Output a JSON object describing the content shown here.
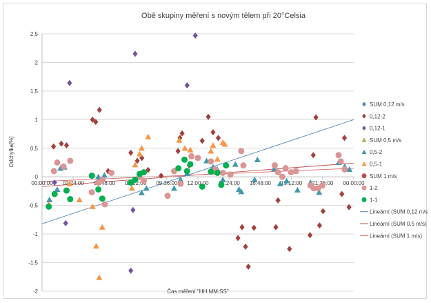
{
  "chart_data": {
    "type": "scatter",
    "title": "Obě skupiny měření s novým tělem při 20°Celsia",
    "xlabel": "Čas měření \"HH:MM:SS\"",
    "ylabel": "Odchylka[%]",
    "x_unit": "time of day",
    "xlim": [
      "00:00:00",
      "24:00:00"
    ],
    "ylim": [
      -2,
      2.5
    ],
    "x_ticks": [
      "00:00:00",
      "02:24:00",
      "04:48:00",
      "07:12:00",
      "09:36:00",
      "12:00:00",
      "14:24:00",
      "16:48:00",
      "19:12:00",
      "21:36:00",
      "00:00:00"
    ],
    "y_ticks": [
      "2,5",
      "2",
      "1,5",
      "1",
      "0,5",
      "0",
      "-0,5",
      "-1",
      "-1,5",
      "-2"
    ],
    "y_tick_values": [
      2.5,
      2,
      1.5,
      1,
      0.5,
      0,
      -0.5,
      -1,
      -1.5,
      -2
    ],
    "grid": true,
    "legend_position": "right",
    "series": [
      {
        "name": "SUM 0,12 m/s",
        "marker": "diamond",
        "color": "#4f81bd",
        "points": []
      },
      {
        "name": "0,12-2",
        "marker": "diamond",
        "color": "#a0413d",
        "points": [
          [
            "00:53:00",
            0.53
          ],
          [
            "01:29:00",
            0.58
          ],
          [
            "01:53:00",
            0.55
          ],
          [
            "03:53:00",
            1.0
          ],
          [
            "04:08:00",
            0.96
          ],
          [
            "04:25:00",
            1.17
          ],
          [
            "05:05:00",
            0.1
          ],
          [
            "06:50:00",
            0.42
          ],
          [
            "07:20:00",
            0.28
          ],
          [
            "07:41:00",
            0.33
          ],
          [
            "08:10:00",
            0.12
          ],
          [
            "09:10:00",
            0.02
          ],
          [
            "10:28:00",
            0.45
          ],
          [
            "10:37:00",
            0.68
          ],
          [
            "10:47:00",
            0.76
          ],
          [
            "11:20:00",
            0.2
          ],
          [
            "12:20:00",
            0.63
          ],
          [
            "12:48:00",
            1.05
          ],
          [
            "13:10:00",
            0.78
          ],
          [
            "13:34:00",
            0.68
          ],
          [
            "15:05:00",
            -1.07
          ],
          [
            "15:24:00",
            -0.88
          ],
          [
            "15:40:00",
            -1.22
          ],
          [
            "15:53:00",
            -1.57
          ],
          [
            "16:19:00",
            -0.89
          ],
          [
            "18:00:00",
            -0.88
          ],
          [
            "18:10:00",
            -0.41
          ],
          [
            "18:44:00",
            0.16
          ],
          [
            "19:03:00",
            -1.26
          ],
          [
            "20:38:00",
            -1.02
          ],
          [
            "20:53:00",
            0.38
          ],
          [
            "21:05:00",
            1.04
          ],
          [
            "21:22:00",
            -0.85
          ],
          [
            "21:38:00",
            -0.6
          ],
          [
            "23:05:00",
            -0.3
          ],
          [
            "23:17:00",
            0.68
          ],
          [
            "23:38:00",
            -0.53
          ]
        ]
      },
      {
        "name": "0,12-1",
        "marker": "diamond",
        "color": "#7453a0",
        "points": [
          [
            "00:58:00",
            -0.1
          ],
          [
            "01:49:00",
            -0.81
          ],
          [
            "02:07:00",
            1.64
          ],
          [
            "07:00:00",
            -0.58
          ],
          [
            "07:10:00",
            2.15
          ],
          [
            "06:50:00",
            -1.64
          ],
          [
            "11:10:00",
            1.6
          ],
          [
            "11:48:00",
            2.47
          ]
        ]
      },
      {
        "name": "SUM 0,5 m/s",
        "marker": "triangle",
        "color": "#9bbb59",
        "points": []
      },
      {
        "name": "0,5-2",
        "marker": "triangle",
        "color": "#4198af",
        "points": [
          [
            "00:34:00",
            -0.4
          ],
          [
            "01:10:00",
            -0.22
          ],
          [
            "01:25:00",
            0.15
          ],
          [
            "01:43:00",
            0.17
          ],
          [
            "04:20:00",
            0.0
          ],
          [
            "04:48:00",
            0.03
          ],
          [
            "06:48:00",
            -0.1
          ],
          [
            "07:02:00",
            -0.06
          ],
          [
            "07:40:00",
            -0.28
          ],
          [
            "08:02:00",
            -0.2
          ],
          [
            "10:10:00",
            -0.2
          ],
          [
            "10:40:00",
            -0.05
          ],
          [
            "11:10:00",
            0.06
          ],
          [
            "12:40:00",
            0.28
          ],
          [
            "13:10:00",
            0.17
          ],
          [
            "13:30:00",
            0.13
          ],
          [
            "13:55:00",
            -0.05
          ],
          [
            "14:53:00",
            0.22
          ],
          [
            "15:10:00",
            -0.22
          ],
          [
            "15:20:00",
            -0.26
          ],
          [
            "16:22:00",
            -0.05
          ],
          [
            "16:35:00",
            0.3
          ],
          [
            "17:52:00",
            0.14
          ],
          [
            "18:20:00",
            -0.12
          ],
          [
            "18:50:00",
            -0.07
          ],
          [
            "19:40:00",
            -0.23
          ],
          [
            "20:40:00",
            -0.1
          ],
          [
            "21:20:00",
            -0.27
          ],
          [
            "22:50:00",
            0.25
          ],
          [
            "23:18:00",
            0.18
          ],
          [
            "23:40:00",
            0.13
          ]
        ]
      },
      {
        "name": "0,5-1",
        "marker": "triangle",
        "color": "#f79646",
        "points": [
          [
            "00:31:00",
            -0.48
          ],
          [
            "02:07:00",
            -0.12
          ],
          [
            "02:53:00",
            -0.4
          ],
          [
            "03:53:00",
            -0.52
          ],
          [
            "04:10:00",
            -1.21
          ],
          [
            "04:24:00",
            -1.76
          ],
          [
            "04:38:00",
            -0.88
          ],
          [
            "06:55:00",
            -0.2
          ],
          [
            "07:10:00",
            0.21
          ],
          [
            "07:31:00",
            0.4
          ],
          [
            "07:40:00",
            0.5
          ],
          [
            "08:10:00",
            0.7
          ],
          [
            "10:34:00",
            0.64
          ],
          [
            "11:00:00",
            0.5
          ],
          [
            "11:25:00",
            0.47
          ],
          [
            "13:00:00",
            0.45
          ],
          [
            "13:10:00",
            0.55
          ],
          [
            "13:30:00",
            0.31
          ],
          [
            "13:55:00",
            0.6
          ],
          [
            "14:04:00",
            0.57
          ]
        ]
      },
      {
        "name": "SUM 1 m/s",
        "marker": "circle",
        "color": "#c0504d",
        "points": []
      },
      {
        "name": "1-2",
        "marker": "circle",
        "color": "#d99694",
        "points": [
          [
            "00:55:00",
            0.1
          ],
          [
            "01:10:00",
            0.25
          ],
          [
            "01:39:00",
            0.18
          ],
          [
            "02:10:00",
            0.28
          ],
          [
            "03:50:00",
            -0.27
          ],
          [
            "04:19:00",
            -0.1
          ],
          [
            "04:40:00",
            -0.05
          ],
          [
            "04:50:00",
            -0.48
          ],
          [
            "05:20:00",
            0.07
          ],
          [
            "07:30:00",
            0.0
          ],
          [
            "07:50:00",
            -0.07
          ],
          [
            "09:40:00",
            -0.33
          ],
          [
            "10:10:00",
            0.1
          ],
          [
            "10:40:00",
            -0.12
          ],
          [
            "11:30:00",
            0.36
          ],
          [
            "12:00:00",
            0.33
          ],
          [
            "13:00:00",
            0.27
          ],
          [
            "13:20:00",
            0.13
          ],
          [
            "13:55:00",
            0.07
          ],
          [
            "14:30:00",
            0.04
          ],
          [
            "15:20:00",
            0.45
          ],
          [
            "15:30:00",
            0.2
          ],
          [
            "17:55:00",
            0.2
          ],
          [
            "18:10:00",
            0.08
          ],
          [
            "18:30:00",
            0.0
          ],
          [
            "18:45:00",
            0.15
          ],
          [
            "19:10:00",
            0.08
          ],
          [
            "19:33:00",
            0.1
          ],
          [
            "20:40:00",
            -0.15
          ],
          [
            "20:55:00",
            -0.2
          ],
          [
            "21:15:00",
            -0.2
          ],
          [
            "21:35:00",
            -0.15
          ],
          [
            "22:50:00",
            0.38
          ],
          [
            "23:00:00",
            0.27
          ],
          [
            "23:18:00",
            0.13
          ]
        ]
      },
      {
        "name": "1-1",
        "marker": "circle",
        "color": "#00b050",
        "points": [
          [
            "00:31:00",
            -0.52
          ],
          [
            "00:58:00",
            -0.3
          ],
          [
            "01:53:00",
            -0.24
          ],
          [
            "02:10:00",
            -0.39
          ],
          [
            "03:50:00",
            0.02
          ],
          [
            "04:20:00",
            -0.22
          ],
          [
            "04:38:00",
            -0.38
          ],
          [
            "06:50:00",
            -0.1
          ],
          [
            "07:10:00",
            -0.05
          ],
          [
            "07:31:00",
            0.05
          ],
          [
            "07:50:00",
            0.08
          ],
          [
            "10:30:00",
            0.15
          ],
          [
            "10:58:00",
            0.3
          ],
          [
            "11:10:00",
            0.1
          ],
          [
            "11:25:00",
            0.22
          ],
          [
            "12:20:00",
            -0.17
          ],
          [
            "13:00:00",
            0.09
          ],
          [
            "13:30:00",
            0.07
          ],
          [
            "13:48:00",
            -0.14
          ],
          [
            "14:10:00",
            0.2
          ]
        ]
      }
    ],
    "trendlines": [
      {
        "name": "Lineární (SUM 0,12 m/s)",
        "color": "#4f81bd",
        "endpoints": [
          [
            "00:00:00",
            -0.82
          ],
          [
            "24:00:00",
            1.0
          ]
        ]
      },
      {
        "name": "Lineární (SUM 0,5 m/s)",
        "color": "#c0504d",
        "endpoints": [
          [
            "00:00:00",
            -0.17
          ],
          [
            "24:00:00",
            0.24
          ]
        ]
      },
      {
        "name": "Lineární (SUM 1 m/s)",
        "color": "#e06666",
        "endpoints": [
          [
            "00:00:00",
            -0.08
          ],
          [
            "24:00:00",
            0.15
          ]
        ]
      }
    ]
  }
}
